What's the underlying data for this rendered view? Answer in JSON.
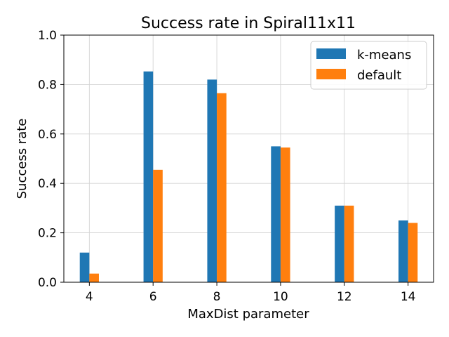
{
  "chart_data": {
    "type": "bar",
    "title": "Success rate in Spiral11x11",
    "xlabel": "MaxDist parameter",
    "ylabel": "Success rate",
    "x": [
      4,
      6,
      8,
      10,
      12,
      14
    ],
    "xlim": [
      3.2,
      14.8
    ],
    "ylim": [
      0,
      1
    ],
    "bar_width": 0.3,
    "grid": true,
    "legend_position": "top-right",
    "yticks": [
      0.0,
      0.2,
      0.4,
      0.6,
      0.8,
      1.0
    ],
    "ytick_labels": [
      "0.0",
      "0.2",
      "0.4",
      "0.6",
      "0.8",
      "1.0"
    ],
    "xtick_labels": [
      "4",
      "6",
      "8",
      "10",
      "12",
      "14"
    ],
    "series": [
      {
        "name": "k-means",
        "color": "#1f77b4",
        "values": [
          0.12,
          0.853,
          0.82,
          0.55,
          0.31,
          0.25
        ]
      },
      {
        "name": "default",
        "color": "#ff7f0e",
        "values": [
          0.035,
          0.455,
          0.765,
          0.545,
          0.31,
          0.24
        ]
      }
    ]
  }
}
